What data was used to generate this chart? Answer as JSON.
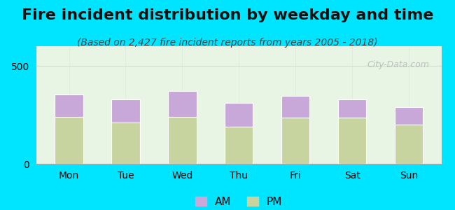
{
  "title": "Fire incident distribution by weekday and time",
  "subtitle": "(Based on 2,427 fire incident reports from years 2005 - 2018)",
  "categories": [
    "Mon",
    "Tue",
    "Wed",
    "Thu",
    "Fri",
    "Sat",
    "Sun"
  ],
  "pm_values": [
    240,
    210,
    240,
    190,
    235,
    235,
    200
  ],
  "am_values": [
    115,
    120,
    130,
    120,
    110,
    95,
    90
  ],
  "am_color": "#c8a8d8",
  "pm_color": "#c8d4a0",
  "background_outer": "#00e5ff",
  "background_inner_top": "#e8f5e4",
  "background_inner_bottom": "#d4ecd0",
  "ylim": [
    0,
    600
  ],
  "yticks": [
    0,
    500
  ],
  "grid_color": "#ccddcc",
  "bar_width": 0.5,
  "title_fontsize": 16,
  "subtitle_fontsize": 10,
  "tick_fontsize": 10,
  "legend_fontsize": 11
}
